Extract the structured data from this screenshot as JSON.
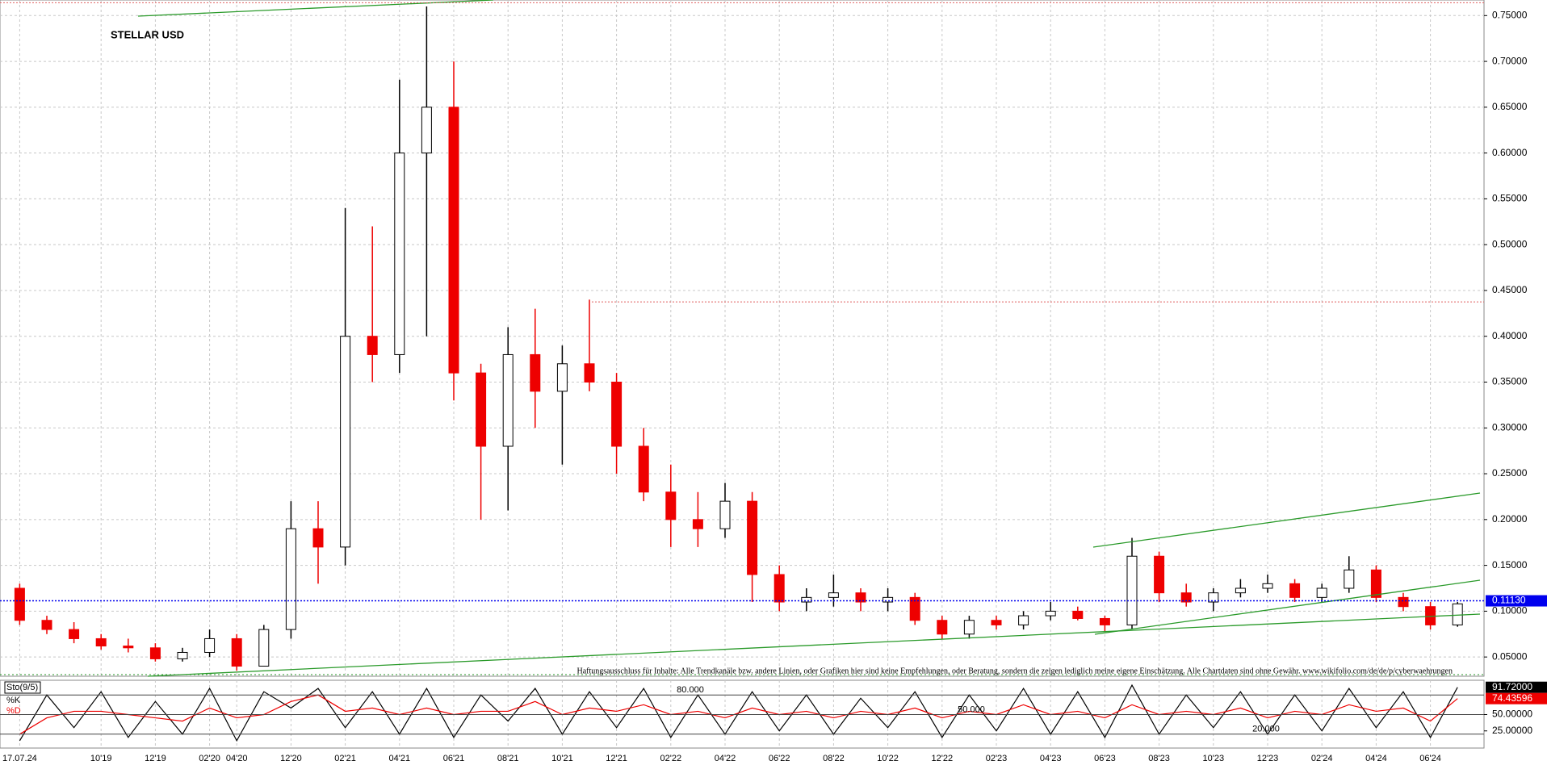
{
  "chart_data": [
    {
      "type": "candlestick",
      "title": "STELLAR USD",
      "categories": [
        "17.07.24",
        null,
        null,
        "10'19",
        null,
        "12'19",
        null,
        "02'20",
        "04'20",
        null,
        "12'20",
        null,
        "02'21",
        null,
        "04'21",
        null,
        "06'21",
        null,
        "08'21",
        null,
        "10'21",
        null,
        "12'21",
        null,
        "02'22",
        null,
        "04'22",
        null,
        "06'22",
        null,
        "08'22",
        null,
        "10'22",
        null,
        "12'22",
        null,
        "02'23",
        null,
        "04'23",
        null,
        "06'23",
        null,
        "08'23",
        null,
        "10'23",
        null,
        "12'23",
        null,
        "02'24",
        null,
        "04'24",
        null,
        "06'24",
        null
      ],
      "open": [
        0.125,
        0.09,
        0.08,
        0.07,
        0.062,
        0.06,
        0.048,
        0.055,
        0.07,
        0.04,
        0.08,
        0.19,
        0.17,
        0.4,
        0.38,
        0.6,
        0.65,
        0.36,
        0.28,
        0.38,
        0.34,
        0.37,
        0.35,
        0.28,
        0.23,
        0.2,
        0.19,
        0.22,
        0.14,
        0.11,
        0.115,
        0.12,
        0.11,
        0.115,
        0.09,
        0.075,
        0.09,
        0.085,
        0.095,
        0.1,
        0.092,
        0.085,
        0.16,
        0.12,
        0.11,
        0.12,
        0.125,
        0.13,
        0.115,
        0.125,
        0.145,
        0.115,
        0.105,
        0.085
      ],
      "high": [
        0.13,
        0.095,
        0.088,
        0.075,
        0.07,
        0.065,
        0.06,
        0.08,
        0.075,
        0.085,
        0.22,
        0.22,
        0.54,
        0.52,
        0.68,
        0.76,
        0.7,
        0.37,
        0.41,
        0.43,
        0.39,
        0.44,
        0.36,
        0.3,
        0.26,
        0.23,
        0.24,
        0.23,
        0.15,
        0.125,
        0.14,
        0.125,
        0.125,
        0.12,
        0.095,
        0.095,
        0.095,
        0.1,
        0.11,
        0.105,
        0.095,
        0.18,
        0.165,
        0.13,
        0.125,
        0.135,
        0.14,
        0.135,
        0.13,
        0.16,
        0.15,
        0.12,
        0.11,
        0.11
      ],
      "low": [
        0.085,
        0.075,
        0.065,
        0.058,
        0.055,
        0.045,
        0.045,
        0.05,
        0.035,
        0.04,
        0.07,
        0.13,
        0.15,
        0.35,
        0.36,
        0.4,
        0.33,
        0.2,
        0.21,
        0.3,
        0.26,
        0.34,
        0.25,
        0.22,
        0.17,
        0.17,
        0.18,
        0.11,
        0.1,
        0.1,
        0.105,
        0.1,
        0.1,
        0.085,
        0.07,
        0.07,
        0.08,
        0.08,
        0.09,
        0.09,
        0.078,
        0.08,
        0.11,
        0.105,
        0.1,
        0.115,
        0.12,
        0.11,
        0.11,
        0.12,
        0.11,
        0.1,
        0.08,
        0.083
      ],
      "close": [
        0.09,
        0.08,
        0.07,
        0.062,
        0.06,
        0.048,
        0.055,
        0.07,
        0.04,
        0.08,
        0.19,
        0.17,
        0.4,
        0.38,
        0.6,
        0.65,
        0.36,
        0.28,
        0.38,
        0.34,
        0.37,
        0.35,
        0.28,
        0.23,
        0.2,
        0.19,
        0.22,
        0.14,
        0.11,
        0.115,
        0.12,
        0.11,
        0.115,
        0.09,
        0.075,
        0.09,
        0.085,
        0.095,
        0.1,
        0.092,
        0.085,
        0.16,
        0.12,
        0.11,
        0.12,
        0.125,
        0.13,
        0.115,
        0.125,
        0.145,
        0.115,
        0.105,
        0.085,
        0.108
      ],
      "up_color": "#000000",
      "down_color": "#ee0000",
      "ylim": [
        0.029,
        0.767
      ],
      "yticks": [
        {
          "value": 0.05,
          "label": "0.05000"
        },
        {
          "value": 0.1,
          "label": "0.10000"
        },
        {
          "value": 0.15,
          "label": "0.15000"
        },
        {
          "value": 0.2,
          "label": "0.20000"
        },
        {
          "value": 0.25,
          "label": "0.25000"
        },
        {
          "value": 0.3,
          "label": "0.30000"
        },
        {
          "value": 0.35,
          "label": "0.35000"
        },
        {
          "value": 0.4,
          "label": "0.40000"
        },
        {
          "value": 0.45,
          "label": "0.45000"
        },
        {
          "value": 0.5,
          "label": "0.50000"
        },
        {
          "value": 0.55,
          "label": "0.55000"
        },
        {
          "value": 0.6,
          "label": "0.60000"
        },
        {
          "value": 0.65,
          "label": "0.65000"
        },
        {
          "value": 0.7,
          "label": "0.70000"
        },
        {
          "value": 0.75,
          "label": "0.75000"
        }
      ],
      "grid": true,
      "current_price": {
        "value": 0.1113,
        "label": "0.11130",
        "color": "#0000ee"
      },
      "reference_lines": [
        {
          "value": 0.4375,
          "color": "#e06060"
        },
        {
          "value": 0.764,
          "color": "#e06060"
        }
      ],
      "annotation": "Haftungsausschluss für Inhalte: Alle Trendkanäle bzw. andere Linien, oder Grafiken hier sind keine Empfehlungen, oder Beratung, sondern die zeigen lediglich meine eigene Einschätzung. Alle Chartdaten sind ohne Gewähr. www.wikifolio.com/de/de/p/cyberwaehrungen"
    },
    {
      "type": "line",
      "title": "Sto(9/5)",
      "series": [
        {
          "name": "%K",
          "color": "#000000",
          "values": [
            10,
            80,
            30,
            85,
            15,
            70,
            20,
            90,
            10,
            85,
            60,
            90,
            30,
            85,
            20,
            90,
            15,
            80,
            40,
            90,
            20,
            85,
            30,
            90,
            15,
            80,
            20,
            85,
            25,
            80,
            20,
            75,
            30,
            85,
            15,
            80,
            25,
            90,
            20,
            85,
            15,
            95,
            20,
            80,
            30,
            85,
            20,
            80,
            25,
            90,
            30,
            85,
            15,
            91.72
          ],
          "last_value": {
            "value": 91.72,
            "label": "91.72000"
          }
        },
        {
          "name": "%D",
          "color": "#ee0000",
          "values": [
            20,
            45,
            55,
            55,
            50,
            45,
            40,
            60,
            45,
            50,
            70,
            80,
            55,
            60,
            50,
            60,
            50,
            55,
            55,
            70,
            50,
            60,
            55,
            65,
            50,
            55,
            45,
            60,
            50,
            55,
            45,
            55,
            50,
            60,
            45,
            55,
            50,
            65,
            50,
            55,
            45,
            65,
            50,
            55,
            50,
            60,
            45,
            55,
            50,
            65,
            55,
            60,
            40,
            74.43596
          ],
          "last_value": {
            "value": 74.43596,
            "label": "74.43596"
          }
        }
      ],
      "ylim": [
        0,
        100
      ],
      "yticks": [
        {
          "value": 25,
          "label": "25.00000"
        },
        {
          "value": 50,
          "label": "50.00000"
        }
      ],
      "levels": [
        {
          "value": 80,
          "label": "80.000"
        },
        {
          "value": 50,
          "label": "50.000"
        },
        {
          "value": 20,
          "label": "20.000"
        }
      ]
    }
  ]
}
